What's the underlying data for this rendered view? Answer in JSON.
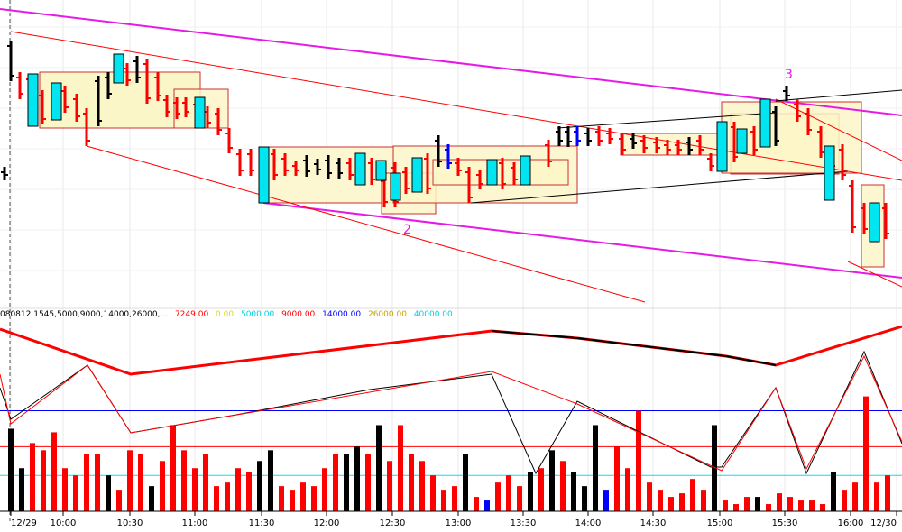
{
  "chart_data": {
    "type": "bar",
    "price_panel": {
      "bar_colors": {
        "down": "#ff0000",
        "neutral": "#000000",
        "up": "#0000ff",
        "box_body": "#00e5f0"
      },
      "box_fill": "#fbf6c8",
      "box_border": "#c83232",
      "channel_color": "#e61ae6",
      "trend_color": "#ff0000",
      "wave_labels": [
        {
          "text": "2",
          "x": "12:20",
          "near": "lower channel"
        },
        {
          "text": "3",
          "x": "15:25",
          "near": "upper channel"
        }
      ]
    },
    "volume_panel": {
      "legend": [
        {
          "text": "080812,1545,5000,9000,14000,26000,...",
          "color": "#000000"
        },
        {
          "text": "7249.00",
          "color": "#ff0000"
        },
        {
          "text": "0.00",
          "color": "#ffff00"
        },
        {
          "text": "5000.00",
          "color": "#00ffff"
        },
        {
          "text": "9000.00",
          "color": "#ff0000"
        },
        {
          "text": "14000.00",
          "color": "#0000ff"
        },
        {
          "text": "26000.00",
          "color": "#c8a000"
        },
        {
          "text": "40000.00",
          "color": "#00ffff"
        }
      ],
      "levels": [
        {
          "value": 5000,
          "color": "#00e5f0"
        },
        {
          "value": 9000,
          "color": "#ff0000"
        },
        {
          "value": 14000,
          "color": "#0000ff"
        }
      ],
      "ylim": [
        0,
        26000
      ]
    },
    "x_tick_labels": [
      "12/29",
      "10:00",
      "10:30",
      "11:00",
      "11:30",
      "12:00",
      "12:30",
      "13:00",
      "13:30",
      "14:00",
      "14:30",
      "15:00",
      "15:30",
      "16:00",
      "12/30"
    ],
    "series": [
      {
        "color": "#000000",
        "values": [
          11500,
          6000,
          5000,
          3500
        ]
      },
      {
        "color": "#ff0000",
        "values": [
          9500,
          8500,
          11000,
          6000,
          5000,
          8000,
          8000,
          3000,
          8500,
          8000,
          7000,
          12000,
          8500,
          6000,
          8000,
          3500,
          4000,
          6000,
          5500,
          3500,
          3000,
          4000,
          3500,
          6000,
          8000,
          8000,
          7000,
          12000,
          8000,
          7000,
          5000,
          3000,
          3500,
          2000,
          4000,
          5000,
          3500,
          6000,
          7000,
          9000,
          6000,
          14000,
          4000,
          3000,
          2000,
          2500,
          4500,
          3000,
          1500,
          1000,
          2000,
          1000,
          2500,
          2000,
          1500,
          1500,
          1000,
          3000,
          4000,
          16000,
          4000,
          5000,
          5500,
          6000,
          5000,
          9000,
          4500,
          3000,
          3500,
          3000,
          2500,
          8000,
          9000,
          21000,
          21000,
          9000,
          5500
        ]
      },
      {
        "color": "#000000",
        "values": [
          7000,
          8500,
          8000,
          9000,
          12000,
          8000,
          5500,
          8500,
          5500,
          3500,
          12000,
          12000,
          2000,
          5500,
          6500,
          6000,
          6500,
          5500,
          5000,
          5000,
          2000,
          21000,
          1500,
          2000,
          2500,
          1500,
          5000,
          4500,
          7000
        ]
      },
      {
        "color": "#0000ff",
        "values": [
          1500,
          3000
        ]
      }
    ],
    "yl_axis_ranges": {
      "price": "unlabeled",
      "volume": [
        0,
        26000
      ]
    }
  }
}
